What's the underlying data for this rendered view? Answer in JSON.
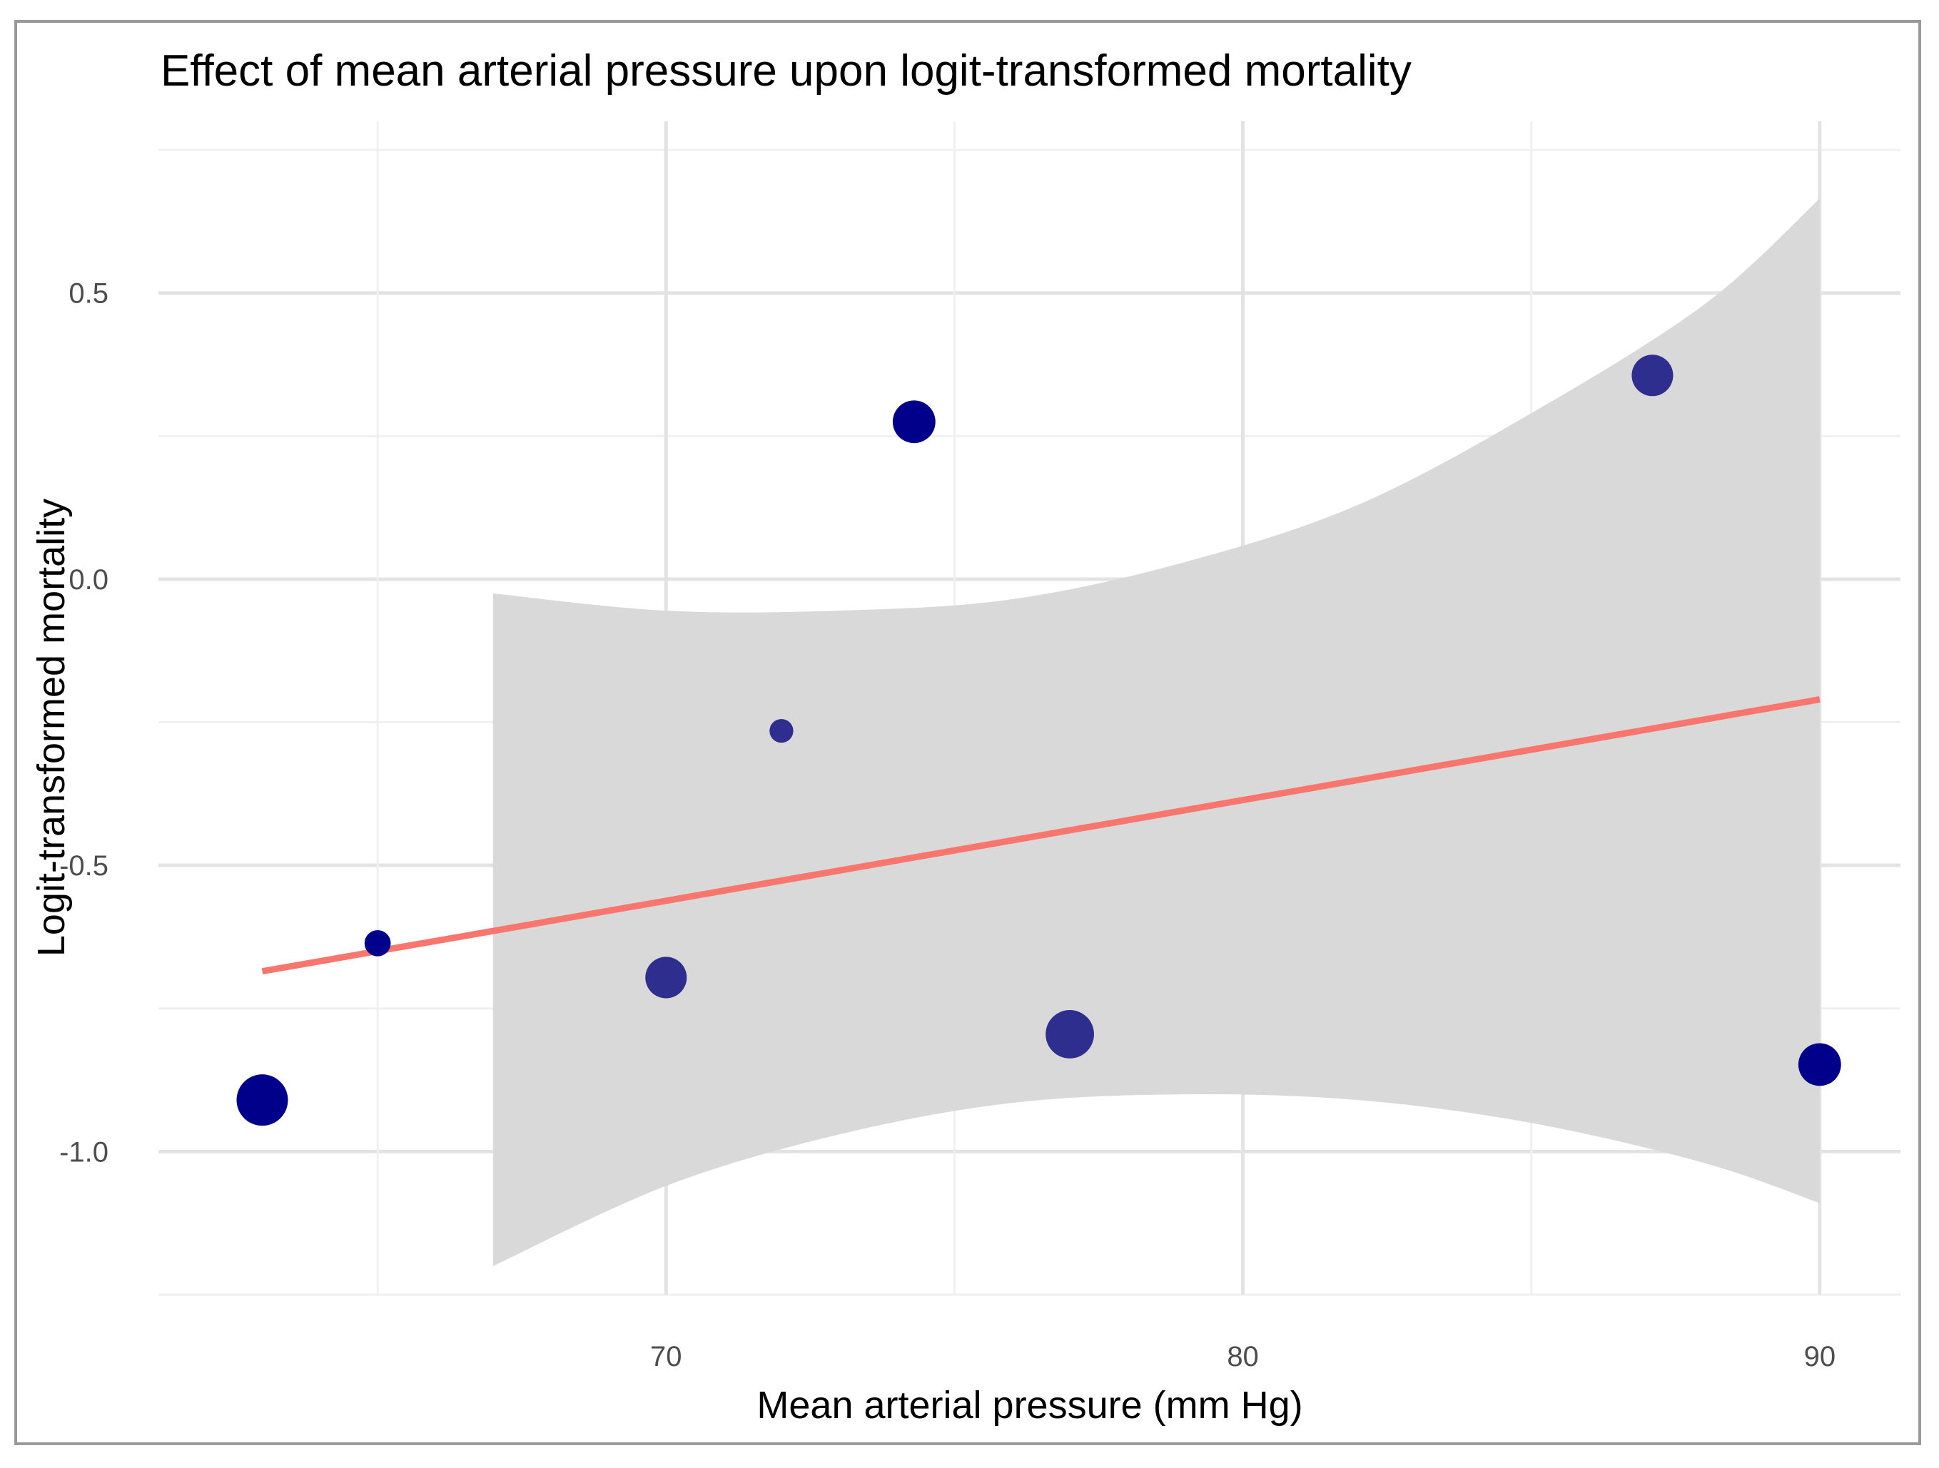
{
  "chart_data": {
    "type": "scatter",
    "title": "Effect of mean arterial pressure upon logit-transformed mortality",
    "xlabel": "Mean arterial pressure (mm Hg)",
    "ylabel": "Logit-transformed mortality",
    "xlim": [
      61.2,
      91.4
    ],
    "ylim": [
      -1.25,
      0.8
    ],
    "x_ticks": [
      70,
      80,
      90
    ],
    "x_tick_labels": [
      "70",
      "80",
      "90"
    ],
    "y_ticks": [
      -1.0,
      -0.5,
      0.0,
      0.5
    ],
    "y_tick_labels": [
      "-1.0",
      "-0.5",
      "0.0",
      "0.5"
    ],
    "grid": true,
    "points": [
      {
        "x": 63.0,
        "y": -0.91,
        "weight": 1.0,
        "color": "#00008b"
      },
      {
        "x": 65.0,
        "y": -0.636,
        "weight": 0.12,
        "color": "#00008b"
      },
      {
        "x": 70.0,
        "y": -0.696,
        "weight": 0.55,
        "color": "#2e2e8f"
      },
      {
        "x": 72.0,
        "y": -0.265,
        "weight": 0.08,
        "color": "#2e2e8f"
      },
      {
        "x": 74.3,
        "y": 0.275,
        "weight": 0.6,
        "color": "#00008b"
      },
      {
        "x": 77.0,
        "y": -0.795,
        "weight": 0.85,
        "color": "#2e2e8f"
      },
      {
        "x": 87.1,
        "y": 0.356,
        "weight": 0.55,
        "color": "#2e2e8f"
      },
      {
        "x": 90.0,
        "y": -0.848,
        "weight": 0.6,
        "color": "#00008b"
      }
    ],
    "regression_line": {
      "x": [
        63.0,
        90.0
      ],
      "y": [
        -0.685,
        -0.21
      ],
      "color": "#f8766d"
    },
    "confidence_band": {
      "color": "#d9d9d9",
      "x": [
        67.0,
        70.0,
        73.0,
        76.0,
        79.0,
        82.0,
        85.0,
        88.0,
        90.0
      ],
      "lower": [
        -1.2,
        -1.06,
        -0.97,
        -0.915,
        -0.9,
        -0.91,
        -0.95,
        -1.02,
        -1.09
      ],
      "upper": [
        -0.025,
        -0.055,
        -0.055,
        -0.035,
        0.03,
        0.13,
        0.29,
        0.48,
        0.665
      ]
    }
  }
}
